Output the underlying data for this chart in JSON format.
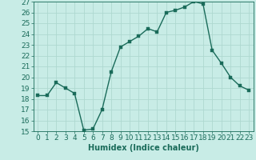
{
  "x": [
    0,
    1,
    2,
    3,
    4,
    5,
    6,
    7,
    8,
    9,
    10,
    11,
    12,
    13,
    14,
    15,
    16,
    17,
    18,
    19,
    20,
    21,
    22,
    23
  ],
  "y": [
    18.3,
    18.3,
    19.5,
    19.0,
    18.5,
    15.1,
    15.2,
    17.0,
    20.5,
    22.8,
    23.3,
    23.8,
    24.5,
    24.2,
    26.0,
    26.2,
    26.5,
    27.0,
    26.8,
    22.5,
    21.3,
    20.0,
    19.2,
    18.8
  ],
  "line_color": "#1a6b5a",
  "marker_color": "#1a6b5a",
  "bg_color": "#c8ece6",
  "grid_color": "#aed8d0",
  "xlabel": "Humidex (Indice chaleur)",
  "ylim": [
    15,
    27
  ],
  "xlim": [
    -0.5,
    23.5
  ],
  "yticks": [
    15,
    16,
    17,
    18,
    19,
    20,
    21,
    22,
    23,
    24,
    25,
    26,
    27
  ],
  "xticks": [
    0,
    1,
    2,
    3,
    4,
    5,
    6,
    7,
    8,
    9,
    10,
    11,
    12,
    13,
    14,
    15,
    16,
    17,
    18,
    19,
    20,
    21,
    22,
    23
  ],
  "xtick_labels": [
    "0",
    "1",
    "2",
    "3",
    "4",
    "5",
    "6",
    "7",
    "8",
    "9",
    "10",
    "11",
    "12",
    "13",
    "14",
    "15",
    "16",
    "17",
    "18",
    "19",
    "20",
    "21",
    "22",
    "23"
  ],
  "xlabel_fontsize": 7,
  "tick_fontsize": 6.5,
  "line_width": 1.0,
  "marker_size": 2.5
}
